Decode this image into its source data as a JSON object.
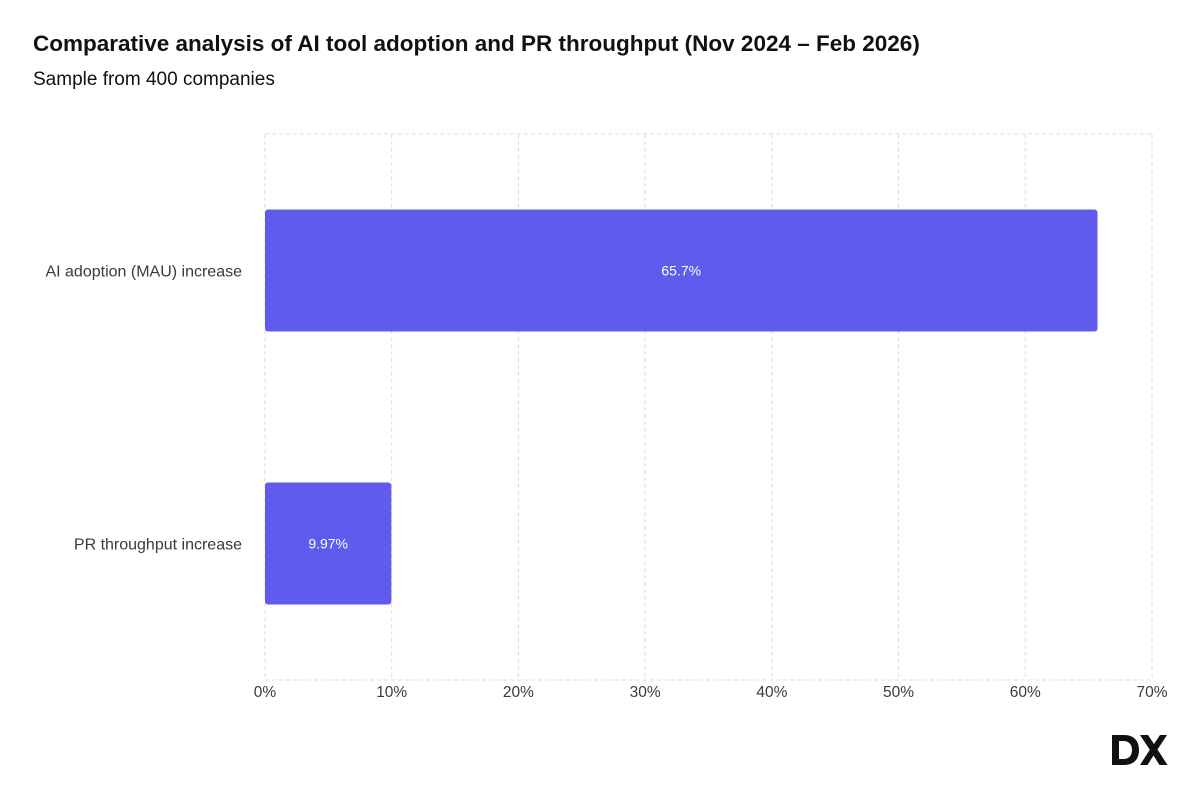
{
  "header": {
    "title": "Comparative analysis of AI tool adoption and PR throughput (Nov 2024 – Feb 2026)",
    "subtitle": "Sample from 400 companies"
  },
  "logo": {
    "text": "DX"
  },
  "colors": {
    "bar": "#5F5BEC",
    "grid": "#DCDCDC",
    "text": "#3A3A3A"
  },
  "chart_data": {
    "type": "bar",
    "orientation": "horizontal",
    "title": "Comparative analysis of AI tool adoption and PR throughput (Nov 2024 – Feb 2026)",
    "subtitle": "Sample from 400 companies",
    "categories": [
      "AI adoption (MAU) increase",
      "PR throughput increase"
    ],
    "values": [
      65.7,
      9.97
    ],
    "data_labels": [
      "65.7%",
      "9.97%"
    ],
    "xlim": [
      0,
      70
    ],
    "xticks": [
      0,
      10,
      20,
      30,
      40,
      50,
      60,
      70
    ],
    "xtick_labels": [
      "0%",
      "10%",
      "20%",
      "30%",
      "40%",
      "50%",
      "60%",
      "70%"
    ],
    "xlabel": "",
    "ylabel": "",
    "grid": true,
    "legend": "none"
  }
}
